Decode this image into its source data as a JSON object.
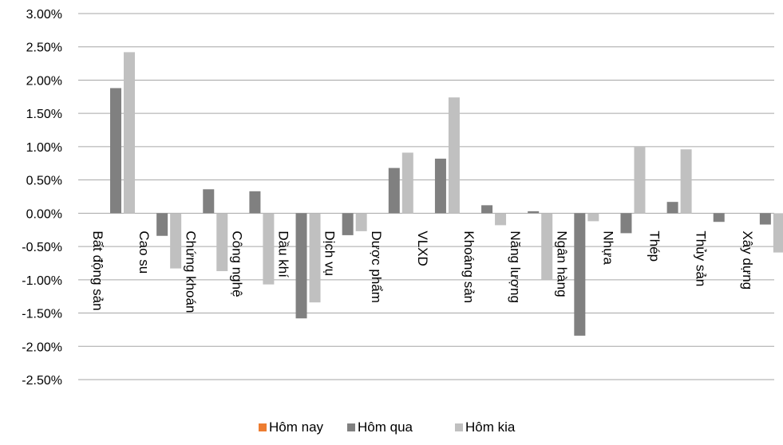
{
  "chart_data": {
    "type": "bar",
    "categories": [
      "Bất động sản",
      "Cao su",
      "Chứng khoán",
      "Công nghệ",
      "Dầu khí",
      "Dịch vụ",
      "Dược phẩm",
      "VLXD",
      "Khoáng sản",
      "Năng lượng",
      "Ngân hàng",
      "Nhựa",
      "Thép",
      "Thủy sản",
      "Xây dựng"
    ],
    "series": [
      {
        "name": "Hôm nay",
        "color": "#ed7d31",
        "values": [
          0,
          0,
          0,
          0,
          0,
          0,
          0,
          0,
          0,
          0,
          0,
          0,
          0,
          0,
          0
        ]
      },
      {
        "name": "Hôm qua",
        "color": "#808080",
        "values": [
          1.88,
          -0.34,
          0.36,
          0.33,
          -1.58,
          -0.33,
          0.68,
          0.82,
          0.12,
          0.03,
          -1.84,
          -0.3,
          0.17,
          -0.13,
          -0.17
        ]
      },
      {
        "name": "Hôm kia",
        "color": "#c0c0c0",
        "values": [
          2.42,
          -0.83,
          -0.87,
          -1.07,
          -1.34,
          -0.27,
          0.91,
          1.74,
          -0.18,
          -1.0,
          -0.12,
          1.0,
          0.96,
          0.0,
          -0.59
        ]
      }
    ],
    "yticks": [
      "3.00%",
      "2.50%",
      "2.00%",
      "1.50%",
      "1.00%",
      "0.50%",
      "0.00%",
      "-0.50%",
      "-1.00%",
      "-1.50%",
      "-2.00%",
      "-2.50%"
    ],
    "ylim": [
      -2.5,
      3.0
    ],
    "grid": true,
    "legend": "bottom-center"
  }
}
